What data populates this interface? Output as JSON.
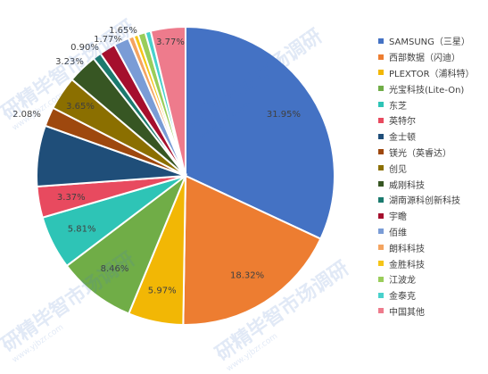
{
  "chart_data": {
    "type": "pie",
    "title": "",
    "slices": [
      {
        "label": "SAMSUNG（三星）",
        "value": 31.95,
        "display": "31.95%",
        "color": "#4472C4"
      },
      {
        "label": "西部数据（闪迪）",
        "value": 18.32,
        "display": "18.32%",
        "color": "#ED7D31"
      },
      {
        "label": "PLEXTOR（浦科特）",
        "value": 5.97,
        "display": "5.97%",
        "color": "#F2B705"
      },
      {
        "label": "光宝科技(Lite-On)",
        "value": 8.46,
        "display": "8.46%",
        "color": "#70AD47"
      },
      {
        "label": "东芝",
        "value": 5.81,
        "display": "5.81%",
        "color": "#2EC4B6"
      },
      {
        "label": "英特尔",
        "value": 3.37,
        "display": "3.37%",
        "color": "#E84A5F"
      },
      {
        "label": "金士顿",
        "value": 6.6,
        "display": "",
        "color": "#1F4E79"
      },
      {
        "label": "镁光（英睿达）",
        "value": 2.08,
        "display": "2.08%",
        "color": "#9E480E"
      },
      {
        "label": "创见",
        "value": 3.65,
        "display": "3.65%",
        "color": "#8B6F00"
      },
      {
        "label": "威刚科技",
        "value": 3.23,
        "display": "3.23%",
        "color": "#375623"
      },
      {
        "label": "湖南源科创新科技",
        "value": 0.9,
        "display": "0.90%",
        "color": "#1B7A6E"
      },
      {
        "label": "宇瞻",
        "value": 1.77,
        "display": "1.77%",
        "color": "#A50F2D"
      },
      {
        "label": "佰维",
        "value": 1.65,
        "display": "1.65%",
        "color": "#7A9CD6"
      },
      {
        "label": "朗科科技",
        "value": 0.6,
        "display": "",
        "color": "#F4A460"
      },
      {
        "label": "金胜科技",
        "value": 0.5,
        "display": "",
        "color": "#F5C518"
      },
      {
        "label": "江波龙",
        "value": 0.8,
        "display": "",
        "color": "#9ACD5A"
      },
      {
        "label": "金泰克",
        "value": 0.6,
        "display": "",
        "color": "#48D1CC"
      },
      {
        "label": "中国其他",
        "value": 3.77,
        "display": "3.77%",
        "color": "#EE7B8C"
      }
    ],
    "legend_position": "right"
  },
  "watermarks": [
    {
      "text": "研精毕智市场调研",
      "sub": "www.yjbzr.com"
    },
    {
      "text": "研精毕智市场调研",
      "sub": "www.yjbzr.com"
    },
    {
      "text": "研精毕智市场调研",
      "sub": "www.yjbzr.com"
    },
    {
      "text": "研精毕智市场调研",
      "sub": "www.yjbzr.com"
    }
  ]
}
